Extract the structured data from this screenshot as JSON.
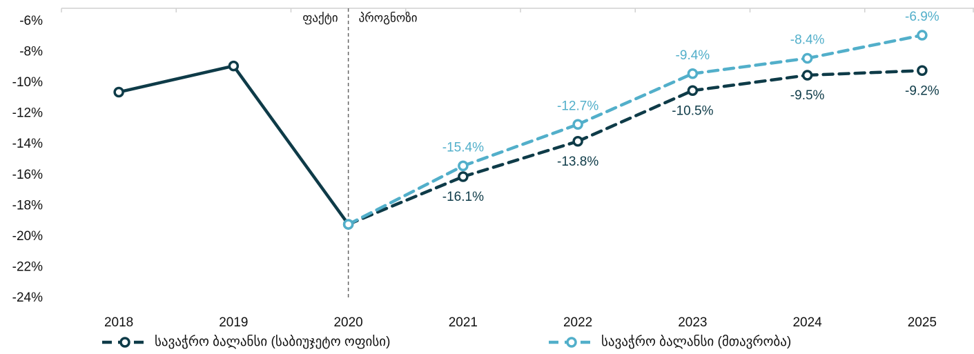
{
  "chart_data": {
    "type": "line",
    "categories": [
      "2018",
      "2019",
      "2020",
      "2021",
      "2022",
      "2023",
      "2024",
      "2025"
    ],
    "series": [
      {
        "name": "სავაჭრო ბალანსი (საბიუჯეტო ოფისი)",
        "color": "#0e3b48",
        "values": [
          -10.6,
          -8.9,
          -19.2,
          -16.1,
          -13.8,
          -10.5,
          -9.5,
          -9.2
        ],
        "value_labels": [
          null,
          null,
          null,
          "-16.1%",
          "-13.8%",
          "-10.5%",
          "-9.5%",
          "-9.2%"
        ]
      },
      {
        "name": "სავაჭრო ბალანსი (მთავრობა)",
        "color": "#52afca",
        "values": [
          null,
          null,
          -19.2,
          -15.4,
          -12.7,
          -9.4,
          -8.4,
          -6.9
        ],
        "value_labels": [
          null,
          null,
          null,
          "-15.4%",
          "-12.7%",
          "-9.4%",
          "-8.4%",
          "-6.9%"
        ]
      }
    ],
    "vline": {
      "x": "2020",
      "left_label": "ფაქტი",
      "right_label": "პროგნოზი"
    },
    "ylim": [
      -24,
      -6
    ],
    "yticks": [
      {
        "value": -6,
        "label": "-6%"
      },
      {
        "value": -8,
        "label": "-8%"
      },
      {
        "value": -10,
        "label": "-10%"
      },
      {
        "value": -12,
        "label": "-12%"
      },
      {
        "value": -14,
        "label": "-14%"
      },
      {
        "value": -16,
        "label": "-16%"
      },
      {
        "value": -18,
        "label": "-18%"
      },
      {
        "value": -20,
        "label": "-20%"
      },
      {
        "value": -22,
        "label": "-22%"
      },
      {
        "value": -24,
        "label": "-24%"
      }
    ],
    "grid": false,
    "legend": "bottom"
  }
}
